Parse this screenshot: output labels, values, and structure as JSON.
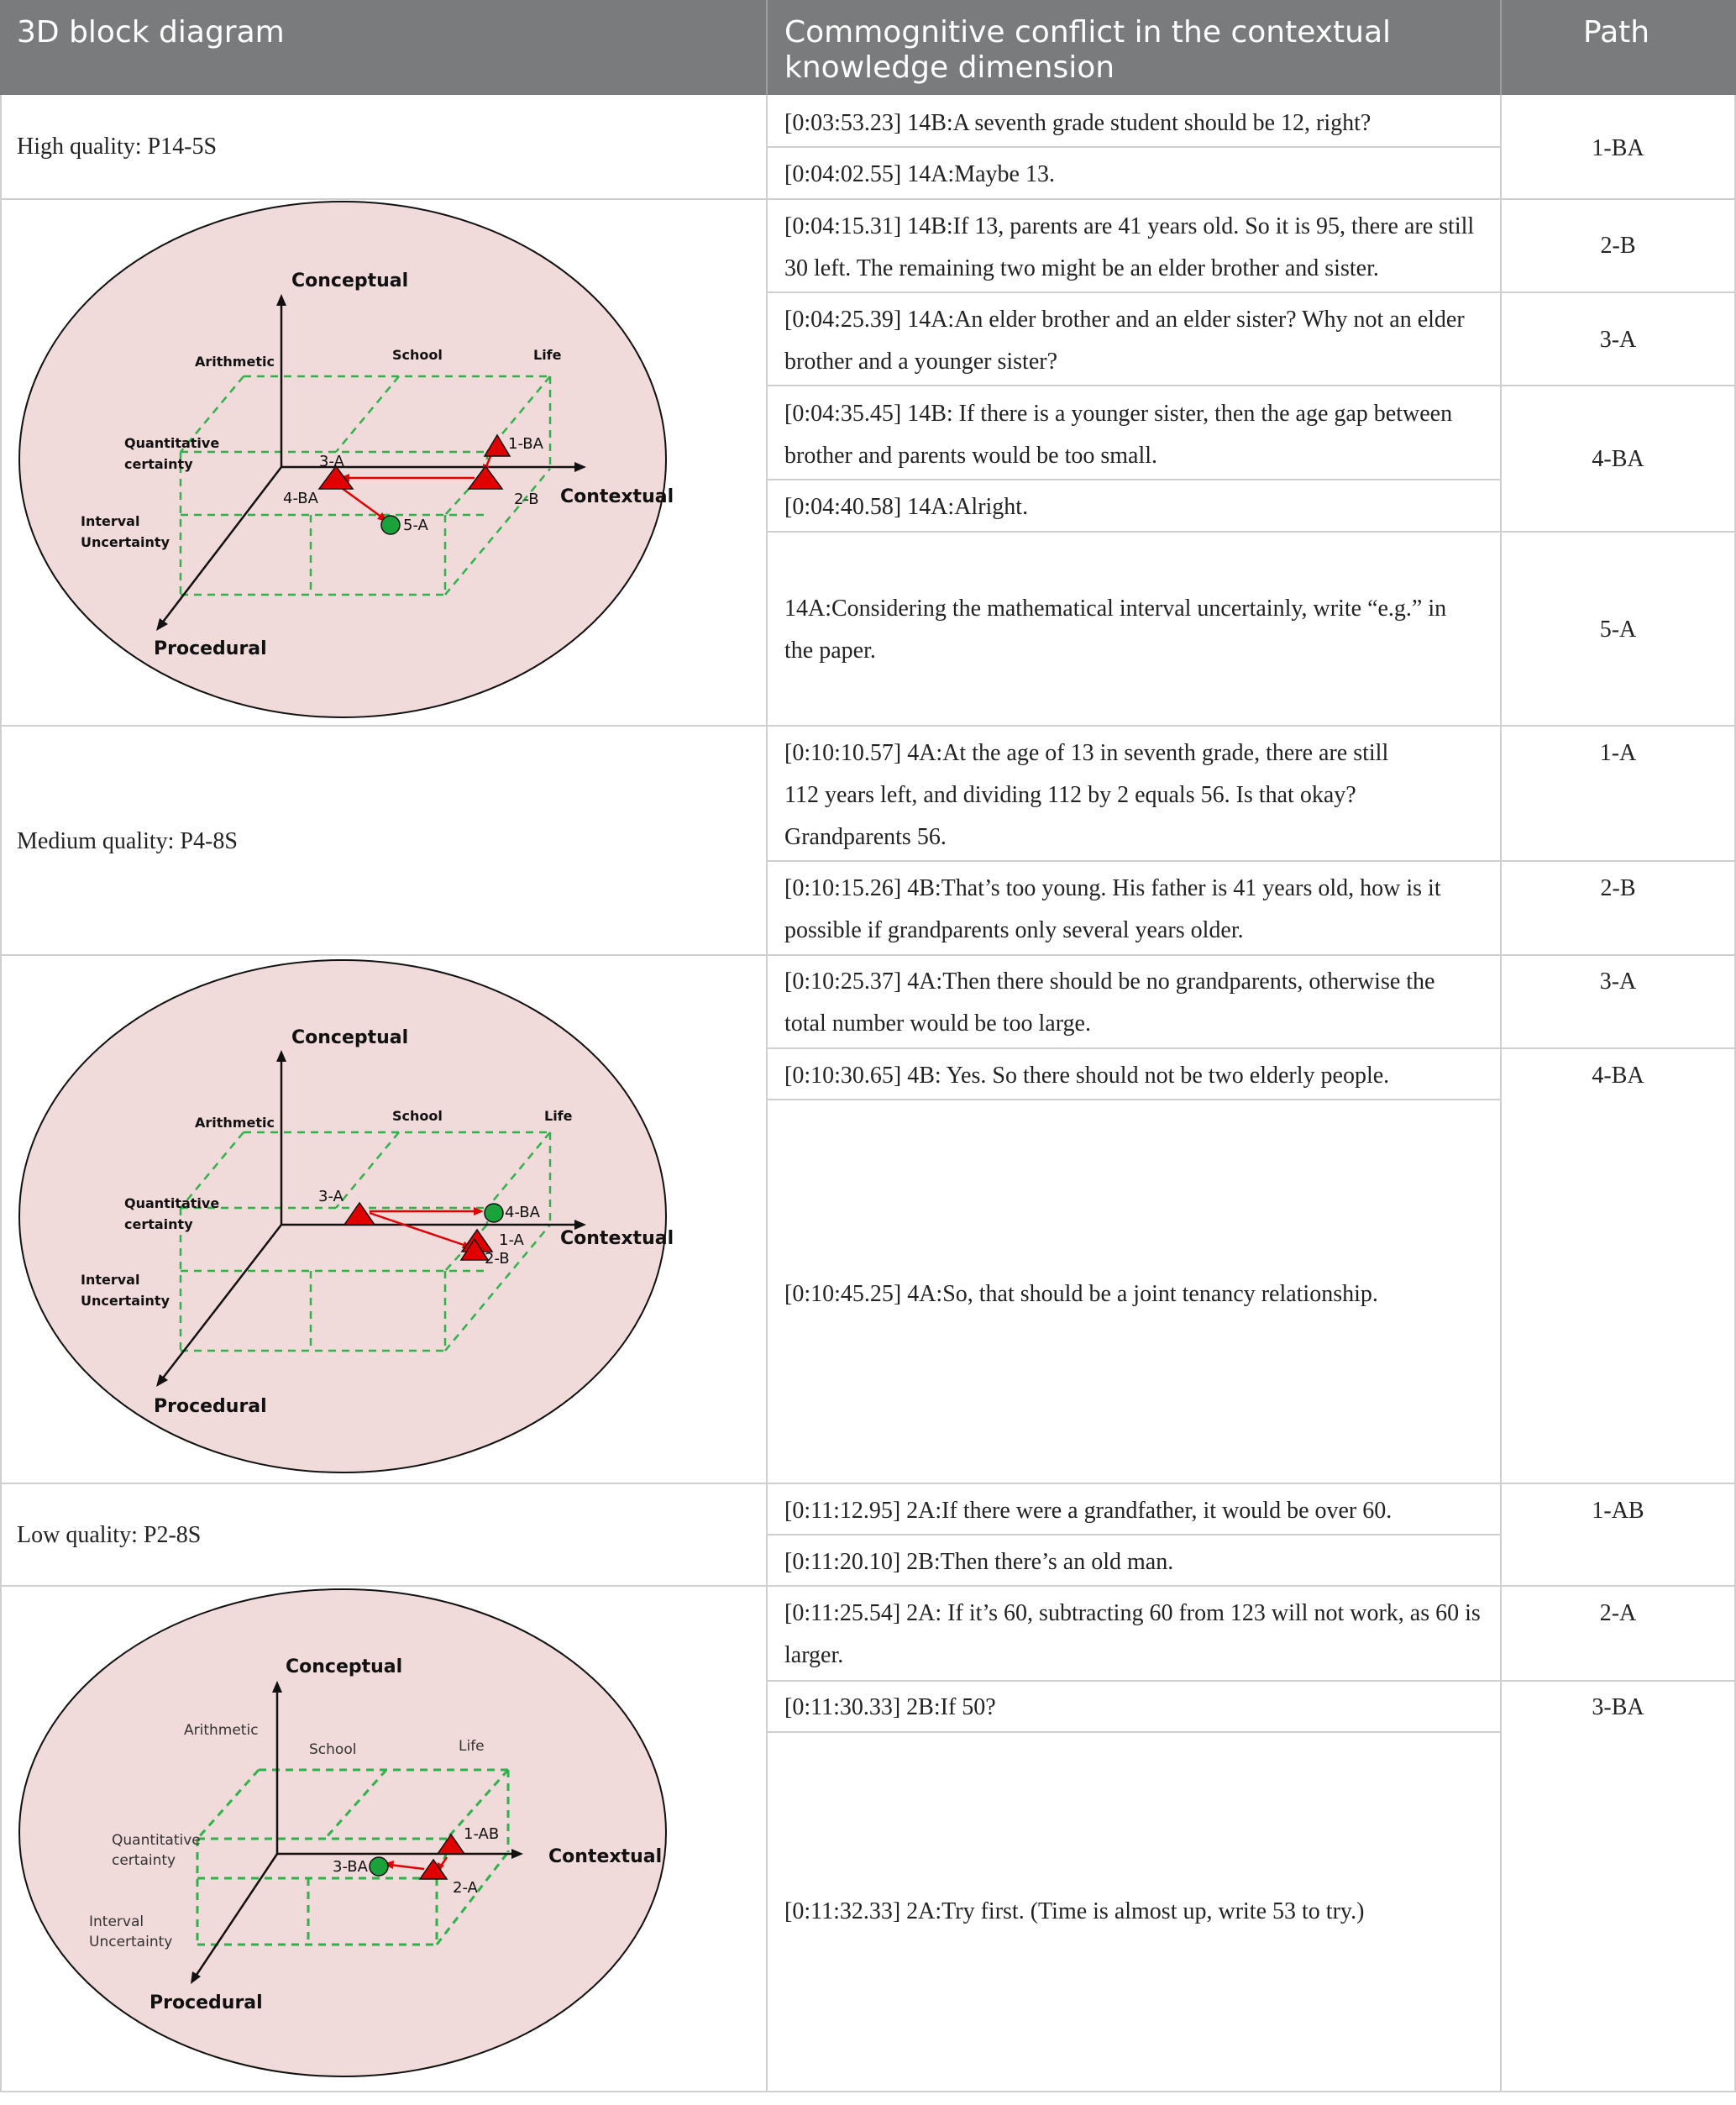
{
  "header": {
    "col1": "3D block diagram",
    "col2_line1": "Commognitive conflict in the contextual",
    "col2_line2": "knowledge dimension",
    "col3": "Path"
  },
  "groups": {
    "high": "High quality: P14-5S",
    "medium": "Medium quality: P4-8S",
    "low": "Low quality: P2-8S"
  },
  "rows": [
    {
      "lines": [
        "[0:03:53.23] 14B:A seventh grade student should be 12, right?"
      ]
    },
    {
      "lines": [
        "[0:04:02.55] 14A:Maybe 13."
      ]
    },
    {
      "lines": [
        "[0:04:15.31] 14B:If 13, parents are 41 years old. So it is 95, there are still",
        "30 left. The remaining two might be an elder brother and sister."
      ]
    },
    {
      "lines": [
        "[0:04:25.39] 14A:An elder brother and an elder sister? Why not an elder",
        "brother and a younger sister?"
      ]
    },
    {
      "lines": [
        "[0:04:35.45] 14B: If there is a younger sister, then the age gap between",
        "brother and parents would be too small."
      ]
    },
    {
      "lines": [
        "[0:04:40.58] 14A:Alright."
      ]
    },
    {
      "lines": [
        "14A:Considering the mathematical interval uncertainly, write “e.g.” in",
        "the paper."
      ]
    },
    {
      "lines": [
        "[0:10:10.57] 4A:At the age of 13 in seventh grade, there are still",
        "112 years left, and dividing 112 by 2 equals 56. Is that okay?",
        "Grandparents 56."
      ]
    },
    {
      "lines": [
        "[0:10:15.26] 4B:That’s too young. His father is 41 years old, how is it",
        "possible if grandparents only several years older."
      ]
    },
    {
      "lines": [
        "[0:10:25.37] 4A:Then there should be no grandparents, otherwise the",
        "total number would be too large."
      ]
    },
    {
      "lines": [
        "[0:10:30.65] 4B: Yes. So there should not be two elderly people."
      ]
    },
    {
      "lines": [
        "[0:10:45.25] 4A:So, that should be a joint tenancy relationship."
      ]
    },
    {
      "lines": [
        "[0:11:12.95] 2A:If there were a grandfather, it would be over 60."
      ]
    },
    {
      "lines": [
        "[0:11:20.10] 2B:Then there’s an old man."
      ]
    },
    {
      "lines": [
        "[0:11:25.54] 2A: If it’s 60, subtracting 60 from 123 will not work, as 60 is",
        "larger."
      ]
    },
    {
      "lines": [
        "[0:11:30.33] 2B:If 50?"
      ]
    },
    {
      "lines": [
        "[0:11:32.33] 2A:Try first. (Time is almost up, write 53 to try.)"
      ]
    }
  ],
  "paths": [
    "1-BA",
    "2-B",
    "3-A",
    "4-BA",
    "5-A",
    "1-A",
    "2-B",
    "3-A",
    "4-BA",
    "1-AB",
    "2-A",
    "3-BA"
  ],
  "diagram_axes": {
    "conceptual": "Conceptual",
    "contextual": "Contextual",
    "procedural": "Procedural",
    "arithmetic": "Arithmetic",
    "school": "School",
    "life": "Life",
    "quant1": "Quantitative",
    "quant2": "certainty",
    "interval1": "Interval",
    "interval2": "Uncertainty"
  },
  "diagrams": {
    "d1": {
      "labels": [
        "1-BA",
        "3-A",
        "4-BA",
        "2-B",
        "5-A"
      ]
    },
    "d2": {
      "labels": [
        "3-A",
        "4-BA",
        "1-A",
        "2-B"
      ]
    },
    "d3": {
      "labels": [
        "1-AB",
        "3-BA",
        "2-A"
      ]
    }
  },
  "colors": {
    "header_bg": "#7a7b7c",
    "ellipse_fill": "#f0dada",
    "box_line": "#2db34a",
    "marker_red": "#e00000",
    "marker_green": "#1aa33a"
  }
}
